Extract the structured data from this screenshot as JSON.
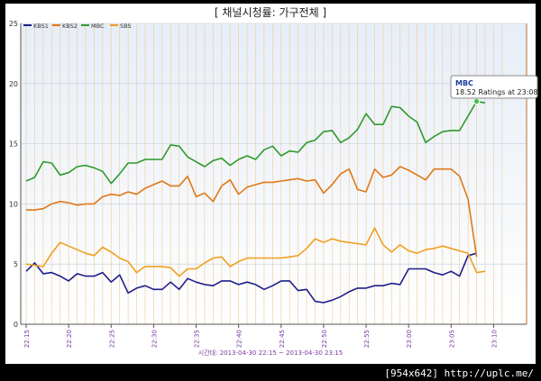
{
  "title": "[ 채널시청률: 가구전체 ]",
  "watermark": "[954x642] http://uplc.me/",
  "tooltip": {
    "series": "MBC",
    "text": "18.52 Ratings at 23:08"
  },
  "chart_data": {
    "type": "line",
    "title": "[ 채널시청률: 가구전체 ]",
    "xlabel": "시간대: 2013-04-30 22:15 ~ 2013-04-30 23:15",
    "ylabel": "",
    "ylim": [
      0,
      25
    ],
    "yticks": [
      "0",
      "5",
      "10",
      "15",
      "20",
      "25"
    ],
    "xticks": [
      "22:15",
      "22:20",
      "22:25",
      "22:30",
      "22:35",
      "22:40",
      "22:45",
      "22:50",
      "22:55",
      "23:00",
      "23:05",
      "23:10"
    ],
    "grid": true,
    "legend_position": "top-left",
    "x": [
      "22:15",
      "22:16",
      "22:17",
      "22:18",
      "22:19",
      "22:20",
      "22:21",
      "22:22",
      "22:23",
      "22:24",
      "22:25",
      "22:26",
      "22:27",
      "22:28",
      "22:29",
      "22:30",
      "22:31",
      "22:32",
      "22:33",
      "22:34",
      "22:35",
      "22:36",
      "22:37",
      "22:38",
      "22:39",
      "22:40",
      "22:41",
      "22:42",
      "22:43",
      "22:44",
      "22:45",
      "22:46",
      "22:47",
      "22:48",
      "22:49",
      "22:50",
      "22:51",
      "22:52",
      "22:53",
      "22:54",
      "22:55",
      "22:56",
      "22:57",
      "22:58",
      "22:59",
      "23:00",
      "23:01",
      "23:02",
      "23:03",
      "23:04",
      "23:05",
      "23:06",
      "23:07",
      "23:08",
      "23:09"
    ],
    "series": [
      {
        "name": "KBS1",
        "color": "#1e1e8c",
        "values": [
          4.4,
          5.1,
          4.2,
          4.3,
          4.0,
          3.6,
          4.2,
          4.0,
          4.0,
          4.3,
          3.5,
          4.1,
          2.6,
          3.0,
          3.2,
          2.9,
          2.9,
          3.5,
          2.9,
          3.8,
          3.5,
          3.3,
          3.2,
          3.6,
          3.6,
          3.3,
          3.5,
          3.3,
          2.9,
          3.2,
          3.6,
          3.6,
          2.8,
          2.9,
          1.9,
          1.8,
          2.0,
          2.3,
          2.7,
          3.0,
          3.0,
          3.2,
          3.2,
          3.4,
          3.3,
          4.6,
          4.6,
          4.6,
          4.3,
          4.1,
          4.4,
          4.0,
          5.7,
          5.9,
          null
        ]
      },
      {
        "name": "KBS2",
        "color": "#e07818",
        "values": [
          9.5,
          9.5,
          9.6,
          10.0,
          10.2,
          10.1,
          9.9,
          10.0,
          10.0,
          10.6,
          10.8,
          10.7,
          11.0,
          10.8,
          11.3,
          11.6,
          11.9,
          11.5,
          11.5,
          12.3,
          10.6,
          10.9,
          10.2,
          11.5,
          12.0,
          10.8,
          11.4,
          11.6,
          11.8,
          11.8,
          11.9,
          12.0,
          12.1,
          11.9,
          12.0,
          10.9,
          11.6,
          12.5,
          12.9,
          11.2,
          11.0,
          12.9,
          12.2,
          12.4,
          13.1,
          12.8,
          12.4,
          12.0,
          12.9,
          12.9,
          12.9,
          12.3,
          10.4,
          5.6,
          null
        ]
      },
      {
        "name": "MBC",
        "color": "#2e9a2e",
        "values": [
          11.9,
          12.2,
          13.5,
          13.4,
          12.4,
          12.6,
          13.1,
          13.2,
          13.0,
          12.7,
          11.7,
          12.5,
          13.4,
          13.4,
          13.7,
          13.7,
          13.7,
          14.9,
          14.8,
          13.9,
          13.5,
          13.1,
          13.6,
          13.8,
          13.2,
          13.7,
          14.0,
          13.7,
          14.5,
          14.8,
          14.0,
          14.4,
          14.3,
          15.1,
          15.3,
          16.0,
          16.1,
          15.1,
          15.5,
          16.2,
          17.5,
          16.6,
          16.6,
          18.1,
          18.0,
          17.3,
          16.8,
          15.1,
          15.6,
          16.0,
          16.1,
          16.1,
          17.3,
          18.52,
          18.4
        ]
      },
      {
        "name": "SBS",
        "color": "#f0a020",
        "values": [
          5.0,
          4.9,
          4.8,
          5.9,
          6.8,
          6.5,
          6.2,
          5.9,
          5.7,
          6.4,
          6.0,
          5.5,
          5.2,
          4.3,
          4.8,
          4.8,
          4.8,
          4.7,
          4.0,
          4.6,
          4.6,
          5.1,
          5.5,
          5.6,
          4.8,
          5.2,
          5.5,
          5.5,
          5.5,
          5.5,
          5.5,
          5.6,
          5.7,
          6.3,
          7.1,
          6.8,
          7.1,
          6.9,
          6.8,
          6.7,
          6.6,
          8.0,
          6.6,
          6.0,
          6.6,
          6.1,
          5.9,
          6.2,
          6.3,
          6.5,
          6.3,
          6.1,
          5.9,
          4.3,
          4.4
        ]
      }
    ]
  }
}
